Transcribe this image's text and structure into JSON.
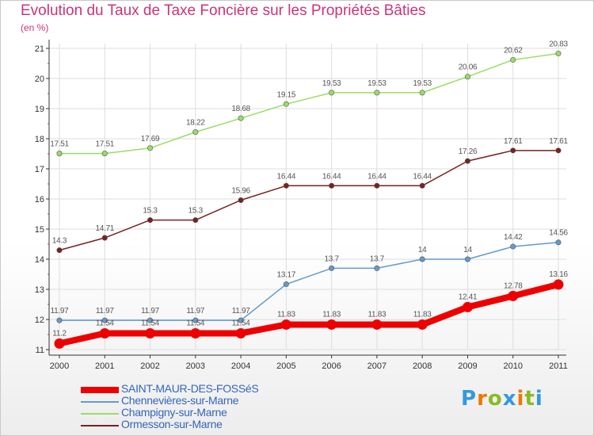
{
  "title": "Evolution du Taux de Taxe Foncière sur les Propriétés Bâties",
  "unit": "(en %)",
  "logo": {
    "letters": [
      "P",
      "r",
      "o",
      "x",
      "i",
      "t",
      "i"
    ],
    "colors": [
      "#3399dd",
      "#ee7700",
      "#88bb22",
      "#3399dd",
      "#ee7700",
      "#88bb22",
      "#3399dd"
    ]
  },
  "chart_data": {
    "type": "line",
    "x": [
      "2000",
      "2001",
      "2002",
      "2003",
      "2004",
      "2005",
      "2006",
      "2007",
      "2008",
      "2009",
      "2010",
      "2011"
    ],
    "ylim": [
      11,
      21
    ],
    "yticks": [
      "11",
      "12",
      "13",
      "14",
      "15",
      "16",
      "17",
      "18",
      "19",
      "20",
      "21"
    ],
    "grid": true,
    "legend_position": "bottom-left",
    "series": [
      {
        "name": "Champigny-sur-Marne",
        "color": "#99dd66",
        "values": [
          17.51,
          17.51,
          17.69,
          18.22,
          18.68,
          19.15,
          19.53,
          19.53,
          19.53,
          20.06,
          20.62,
          20.83
        ],
        "labels": [
          "17.51",
          "17.51",
          "17.69",
          "18.22",
          "18.68",
          "19.15",
          "19.53",
          "19.53",
          "19.53",
          "20.06",
          "20.62",
          "20.83"
        ]
      },
      {
        "name": "Ormesson-sur-Marne",
        "color": "#772222",
        "values": [
          14.3,
          14.71,
          15.3,
          15.3,
          15.96,
          16.44,
          16.44,
          16.44,
          16.44,
          17.26,
          17.61,
          17.61
        ],
        "labels": [
          "14.3",
          "14.71",
          "15.3",
          "15.3",
          "15.96",
          "16.44",
          "16.44",
          "16.44",
          "16.44",
          "17.26",
          "17.61",
          "17.61"
        ]
      },
      {
        "name": "Chennevières-sur-Marne",
        "color": "#6699cc",
        "values": [
          11.97,
          11.97,
          11.97,
          11.97,
          11.97,
          13.17,
          13.7,
          13.7,
          14,
          14,
          14.42,
          14.56
        ],
        "labels": [
          "11.97",
          "11.97",
          "11.97",
          "11.97",
          "11.97",
          "13.17",
          "13.7",
          "13.7",
          "14",
          "14",
          "14.42",
          "14.56"
        ]
      },
      {
        "name": "SAINT-MAUR-DES-FOSSéS",
        "color": "#ee0000",
        "values": [
          11.2,
          11.54,
          11.54,
          11.54,
          11.54,
          11.83,
          11.83,
          11.83,
          11.83,
          12.41,
          12.78,
          13.16
        ],
        "labels": [
          "11.2",
          "11.54",
          "11.54",
          "11.54",
          "11.54",
          "11.83",
          "11.83",
          "11.83",
          "11.83",
          "12.41",
          "12.78",
          "13.16"
        ]
      }
    ],
    "legend_order": [
      "SAINT-MAUR-DES-FOSSéS",
      "Chennevières-sur-Marne",
      "Champigny-sur-Marne",
      "Ormesson-sur-Marne"
    ]
  }
}
